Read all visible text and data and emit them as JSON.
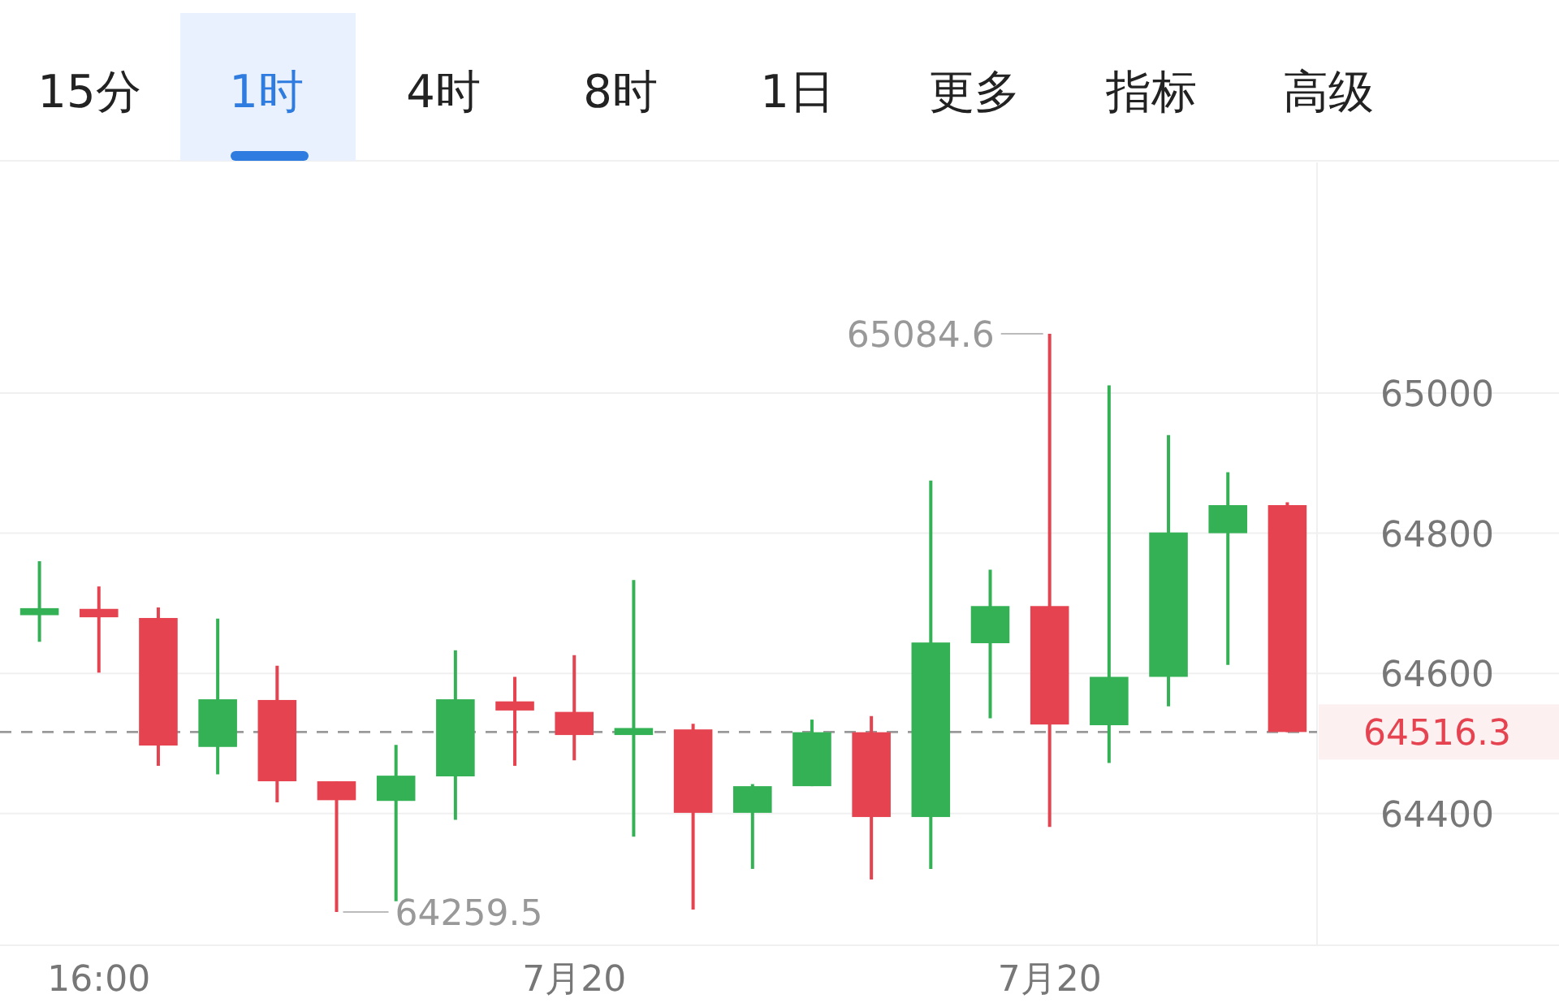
{
  "chart_data": {
    "type": "candlestick",
    "categories": [
      null,
      "16:00",
      null,
      null,
      null,
      null,
      null,
      null,
      null,
      "7月20",
      null,
      null,
      null,
      null,
      null,
      null,
      null,
      "7月20",
      null,
      null,
      null,
      null
    ],
    "ohlc": [
      [
        64683,
        64760,
        64645,
        64693
      ],
      [
        64692,
        64724,
        64601,
        64680
      ],
      [
        64679,
        64694,
        64468,
        64497
      ],
      [
        64495,
        64678,
        64456,
        64563
      ],
      [
        64562,
        64611,
        64416,
        64446
      ],
      [
        64446,
        64446,
        64259.5,
        64419
      ],
      [
        64418,
        64498,
        64275,
        64454
      ],
      [
        64453,
        64633,
        64391,
        64563
      ],
      [
        64560,
        64595,
        64468,
        64547
      ],
      [
        64545,
        64626,
        64476,
        64512
      ],
      [
        64512,
        64733,
        64367,
        64522
      ],
      [
        64520,
        64528,
        64263,
        64401
      ],
      [
        64401,
        64442,
        64321,
        64439
      ],
      [
        64439,
        64534,
        64439,
        64516
      ],
      [
        64516,
        64539,
        64306,
        64395
      ],
      [
        64395,
        64875,
        64321,
        64644
      ],
      [
        64643,
        64748,
        64536,
        64696
      ],
      [
        64696,
        65084.6,
        64381,
        64527
      ],
      [
        64526,
        65011,
        64472,
        64595
      ],
      [
        64595,
        64940,
        64553,
        64801
      ],
      [
        64800,
        64887,
        64612,
        64840
      ],
      [
        64840,
        64844,
        64516.3,
        64516.3
      ]
    ],
    "ylim": [
      64212,
      65329
    ],
    "yticks": [
      64400,
      64600,
      64800,
      65000
    ],
    "grid": "y",
    "ref_lines": [
      {
        "axis": "y",
        "value": 64516.3,
        "label": "64516.3",
        "line_style": "dashed"
      }
    ],
    "annotations": [
      "15分",
      "1时",
      "4时",
      "8时",
      "1日",
      "更多",
      "指标",
      "高级",
      "65084.6",
      "64259.5"
    ]
  }
}
